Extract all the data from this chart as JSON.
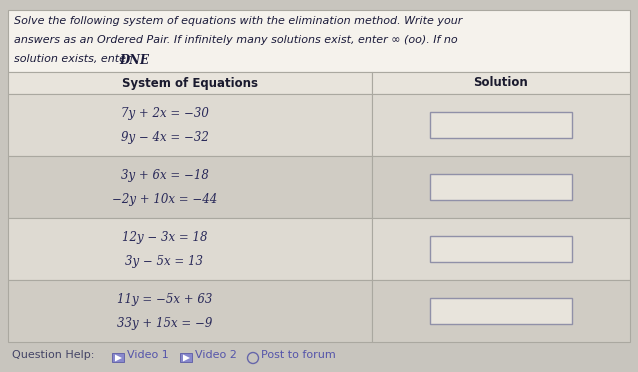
{
  "title_line1": "Solve the following system of equations with the elimination method. Write your",
  "title_line2": "answers as an Ordered Pair. If infinitely many solutions exist, enter ∞ (oo). If no",
  "title_line3": "solution exists, enter ",
  "title_dne": "DNE",
  "col1_header": "System of Equations",
  "col2_header": "Solution",
  "systems": [
    [
      "7y + 2x = −30",
      "9y − 4x = −32"
    ],
    [
      "3y + 6x = −18",
      "−2y + 10x = −44"
    ],
    [
      "12y − 3x = 18",
      "3y − 5x = 13"
    ],
    [
      "11y = −5x + 63",
      "33y + 15x = −9"
    ]
  ],
  "bg_color": "#c8c5be",
  "instr_bg": "#f5f2ec",
  "header_bg": "#e8e4dc",
  "row_bg_odd": "#dedad2",
  "row_bg_even": "#d0ccc4",
  "border_color": "#aaa8a0",
  "text_color": "#1a1a3a",
  "eq_color": "#2a2a5a",
  "header_text_color": "#1a1a2e",
  "answer_box_bg": "#e8e4dc",
  "answer_box_border": "#9090a8",
  "footer_text_color": "#444466",
  "footer_link_color": "#5555aa",
  "figsize": [
    6.38,
    3.72
  ],
  "dpi": 100
}
